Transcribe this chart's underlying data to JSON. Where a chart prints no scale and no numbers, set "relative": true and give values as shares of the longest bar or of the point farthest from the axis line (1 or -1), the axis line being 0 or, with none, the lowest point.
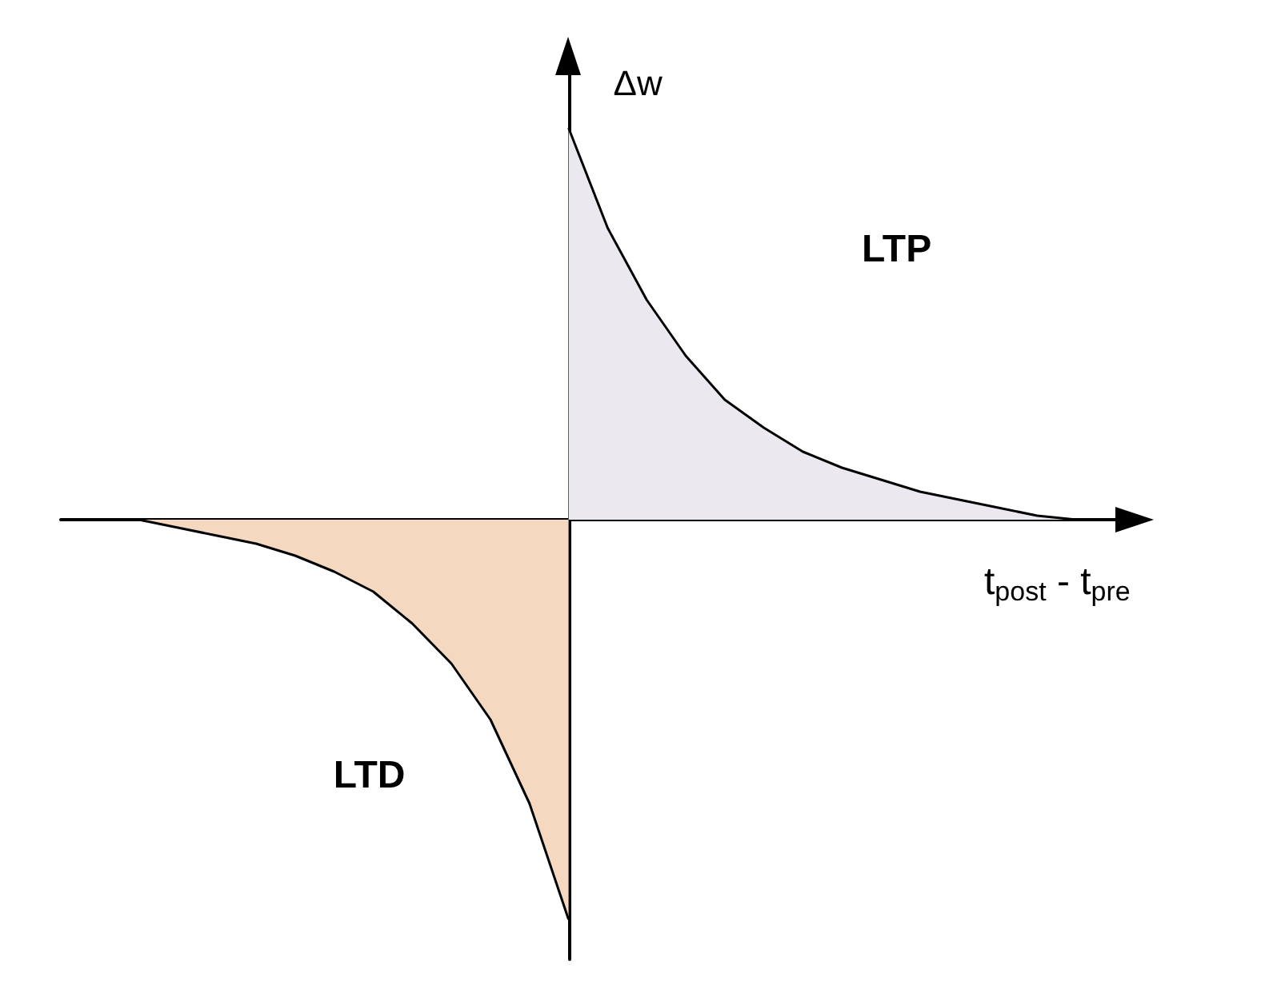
{
  "chart_data": {
    "type": "area",
    "relative": true,
    "ylabel": "Δw",
    "xlabel": "t$_{post}$ - t$_{pre}$",
    "categories": [
      null,
      null,
      null,
      null,
      null,
      null,
      null,
      null,
      null,
      null,
      null,
      null,
      null,
      null,
      null,
      null,
      null,
      null,
      null,
      null,
      null,
      null,
      null,
      null,
      null,
      null,
      null,
      null
    ],
    "series": [
      {
        "color": "#ece8f0",
        "values": [
          null,
          null,
          null,
          null,
          null,
          null,
          null,
          null,
          null,
          null,
          null,
          null,
          null,
          0.98,
          0.73,
          0.55,
          0.41,
          0.3,
          0.23,
          0.17,
          0.13,
          0.1,
          0.07,
          0.05,
          0.03,
          0.01,
          0,
          null
        ]
      },
      {
        "color": "#f4d8c0",
        "values": [
          null,
          null,
          0,
          -0.02,
          -0.04,
          -0.06,
          -0.09,
          -0.13,
          -0.18,
          -0.26,
          -0.36,
          -0.5,
          -0.71,
          -1,
          null,
          null,
          null,
          null,
          null,
          null,
          null,
          null,
          null,
          null,
          null,
          null,
          null,
          null
        ]
      }
    ],
    "annotations": [
      "LTP",
      "LTD"
    ],
    "grid": false,
    "legend": false
  }
}
